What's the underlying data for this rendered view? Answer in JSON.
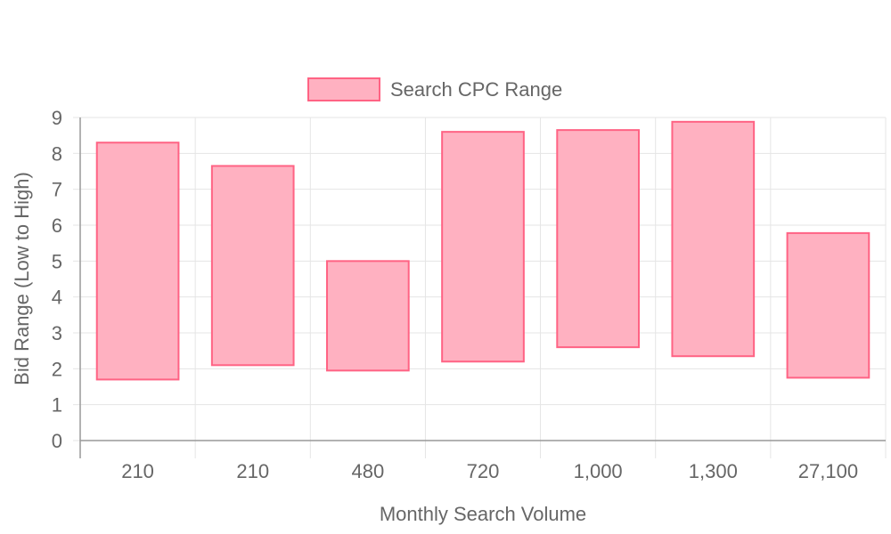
{
  "colors": {
    "bar_fill": "#ffb1c1",
    "bar_stroke": "#ff6384",
    "grid": "#e5e5e5",
    "axis": "#999999",
    "text": "#666666"
  },
  "chart_data": {
    "type": "bar",
    "subtype": "floating-range",
    "categories": [
      "210",
      "210",
      "480",
      "720",
      "1,000",
      "1,300",
      "27,100"
    ],
    "series": [
      {
        "name": "Search CPC Range",
        "ranges": [
          [
            1.7,
            8.3
          ],
          [
            2.1,
            7.65
          ],
          [
            1.95,
            5.0
          ],
          [
            2.2,
            8.6
          ],
          [
            2.6,
            8.65
          ],
          [
            2.35,
            8.88
          ],
          [
            1.75,
            5.78
          ]
        ]
      }
    ],
    "xlabel": "Monthly Search Volume",
    "ylabel": "Bid Range (Low to High)",
    "ylim": [
      0,
      9
    ],
    "yticks": [
      "0",
      "1",
      "2",
      "3",
      "4",
      "5",
      "6",
      "7",
      "8",
      "9"
    ],
    "grid": true,
    "legend_position": "top-center"
  }
}
